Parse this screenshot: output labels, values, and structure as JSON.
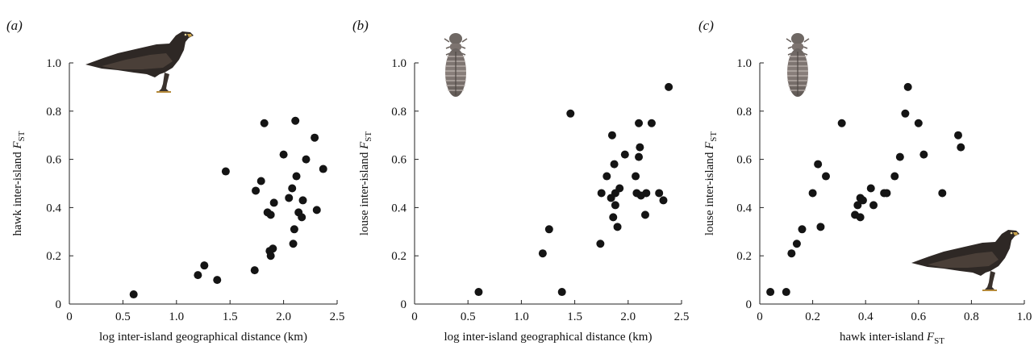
{
  "chart_data": [
    {
      "type": "scatter",
      "panel_label": "(a)",
      "xlabel": "log inter-island geographical distance (km)",
      "ylabel": {
        "text": "hawk inter-island ",
        "var": "F",
        "sub": "ST"
      },
      "xlim": [
        0,
        2.5
      ],
      "ylim": [
        0,
        1.0
      ],
      "xticks": [
        "0",
        "0.5",
        "1.0",
        "1.5",
        "2.0",
        "2.5"
      ],
      "yticks": [
        "0",
        "0.2",
        "0.4",
        "0.6",
        "0.8",
        "1.0"
      ],
      "illustration": "hawk",
      "points": [
        [
          0.6,
          0.04
        ],
        [
          1.2,
          0.12
        ],
        [
          1.26,
          0.16
        ],
        [
          1.38,
          0.1
        ],
        [
          1.46,
          0.55
        ],
        [
          1.73,
          0.14
        ],
        [
          1.74,
          0.47
        ],
        [
          1.79,
          0.51
        ],
        [
          1.82,
          0.75
        ],
        [
          1.85,
          0.38
        ],
        [
          1.87,
          0.22
        ],
        [
          1.88,
          0.37
        ],
        [
          1.88,
          0.2
        ],
        [
          1.9,
          0.23
        ],
        [
          1.91,
          0.42
        ],
        [
          2.0,
          0.62
        ],
        [
          2.05,
          0.44
        ],
        [
          2.08,
          0.48
        ],
        [
          2.09,
          0.25
        ],
        [
          2.1,
          0.31
        ],
        [
          2.11,
          0.76
        ],
        [
          2.12,
          0.53
        ],
        [
          2.14,
          0.38
        ],
        [
          2.17,
          0.36
        ],
        [
          2.18,
          0.43
        ],
        [
          2.21,
          0.6
        ],
        [
          2.29,
          0.69
        ],
        [
          2.31,
          0.39
        ],
        [
          2.37,
          0.56
        ]
      ]
    },
    {
      "type": "scatter",
      "panel_label": "(b)",
      "xlabel": "log inter-island geographical distance (km)",
      "ylabel": {
        "text": "louse inter-island ",
        "var": "F",
        "sub": "ST"
      },
      "xlim": [
        0,
        2.5
      ],
      "ylim": [
        0,
        1.0
      ],
      "xticks": [
        "0",
        "0.5",
        "1.0",
        "1.5",
        "2.0",
        "2.5"
      ],
      "yticks": [
        "0",
        "0.2",
        "0.4",
        "0.6",
        "0.8",
        "1.0"
      ],
      "illustration": "louse",
      "points": [
        [
          0.6,
          0.05
        ],
        [
          1.2,
          0.21
        ],
        [
          1.26,
          0.31
        ],
        [
          1.38,
          0.05
        ],
        [
          1.46,
          0.79
        ],
        [
          1.74,
          0.25
        ],
        [
          1.75,
          0.46
        ],
        [
          1.8,
          0.53
        ],
        [
          1.84,
          0.44
        ],
        [
          1.85,
          0.7
        ],
        [
          1.86,
          0.36
        ],
        [
          1.87,
          0.58
        ],
        [
          1.88,
          0.46
        ],
        [
          1.88,
          0.41
        ],
        [
          1.9,
          0.32
        ],
        [
          1.92,
          0.48
        ],
        [
          1.97,
          0.62
        ],
        [
          2.07,
          0.53
        ],
        [
          2.08,
          0.46
        ],
        [
          2.1,
          0.75
        ],
        [
          2.1,
          0.61
        ],
        [
          2.11,
          0.65
        ],
        [
          2.12,
          0.45
        ],
        [
          2.16,
          0.37
        ],
        [
          2.17,
          0.46
        ],
        [
          2.22,
          0.75
        ],
        [
          2.29,
          0.46
        ],
        [
          2.33,
          0.43
        ],
        [
          2.38,
          0.9
        ]
      ]
    },
    {
      "type": "scatter",
      "panel_label": "(c)",
      "xlabel": {
        "text": "hawk inter-island ",
        "var": "F",
        "sub": "ST"
      },
      "ylabel": {
        "text": "louse inter-island ",
        "var": "F",
        "sub": "ST"
      },
      "xlim": [
        0,
        1.0
      ],
      "ylim": [
        0,
        1.0
      ],
      "xticks": [
        "0",
        "0.2",
        "0.4",
        "0.6",
        "0.8",
        "1.0"
      ],
      "yticks": [
        "0",
        "0.2",
        "0.4",
        "0.6",
        "0.8",
        "1.0"
      ],
      "illustration": "louse and hawk",
      "points": [
        [
          0.04,
          0.05
        ],
        [
          0.1,
          0.05
        ],
        [
          0.12,
          0.21
        ],
        [
          0.14,
          0.25
        ],
        [
          0.16,
          0.31
        ],
        [
          0.2,
          0.46
        ],
        [
          0.22,
          0.58
        ],
        [
          0.23,
          0.32
        ],
        [
          0.25,
          0.53
        ],
        [
          0.31,
          0.75
        ],
        [
          0.36,
          0.37
        ],
        [
          0.37,
          0.41
        ],
        [
          0.38,
          0.36
        ],
        [
          0.38,
          0.44
        ],
        [
          0.39,
          0.43
        ],
        [
          0.42,
          0.48
        ],
        [
          0.43,
          0.41
        ],
        [
          0.47,
          0.46
        ],
        [
          0.48,
          0.46
        ],
        [
          0.51,
          0.53
        ],
        [
          0.53,
          0.61
        ],
        [
          0.55,
          0.79
        ],
        [
          0.56,
          0.9
        ],
        [
          0.6,
          0.75
        ],
        [
          0.62,
          0.62
        ],
        [
          0.69,
          0.46
        ],
        [
          0.75,
          0.7
        ],
        [
          0.76,
          0.65
        ]
      ]
    }
  ]
}
